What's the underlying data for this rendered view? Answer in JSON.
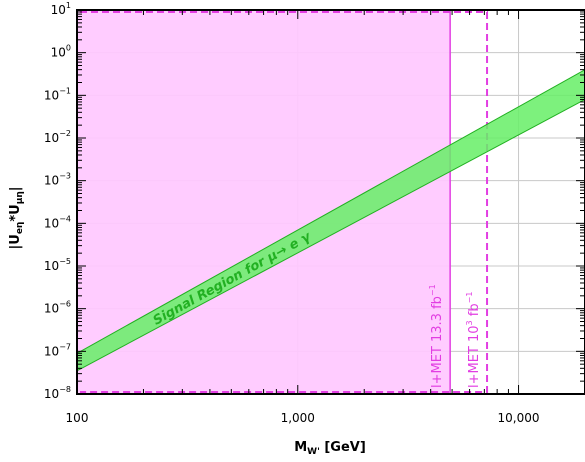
{
  "chart_data": {
    "type": "area",
    "title": "",
    "xlabel_main": "M",
    "xlabel_sub": "W'",
    "xlabel_unit": " [GeV]",
    "ylabel_parts": [
      "|U",
      "eη",
      "*U",
      "μη",
      "|"
    ],
    "xscale": "log",
    "yscale": "log",
    "xlim": [
      100,
      20000
    ],
    "ylim": [
      1e-08,
      10
    ],
    "grid": true,
    "xticks": [
      {
        "value": 100,
        "label": "100"
      },
      {
        "value": 1000,
        "label": "1,000"
      },
      {
        "value": 10000,
        "label": "10,000"
      }
    ],
    "yticks": [
      {
        "value": 10,
        "base": "10",
        "exp": "1"
      },
      {
        "value": 1,
        "base": "10",
        "exp": "0"
      },
      {
        "value": 0.1,
        "base": "10",
        "exp": "−1"
      },
      {
        "value": 0.01,
        "base": "10",
        "exp": "−2"
      },
      {
        "value": 0.001,
        "base": "10",
        "exp": "−3"
      },
      {
        "value": 0.0001,
        "base": "10",
        "exp": "−4"
      },
      {
        "value": 1e-05,
        "base": "10",
        "exp": "−5"
      },
      {
        "value": 1e-06,
        "base": "10",
        "exp": "−6"
      },
      {
        "value": 1e-07,
        "base": "10",
        "exp": "−7"
      },
      {
        "value": 1e-08,
        "base": "10",
        "exp": "−8"
      }
    ],
    "excluded_region": {
      "x_max": 4900,
      "color": "#ffc8ff",
      "border": "#e23ee2"
    },
    "limit_lines": [
      {
        "x": 4900,
        "style": "solid",
        "label": "l+MET 13.3 fb",
        "sup": "−1",
        "color": "#e23ee2"
      },
      {
        "x": 7200,
        "style": "dashed",
        "label": "l+MET 10",
        "label_exp": "3",
        "label_unit": " fb",
        "sup": "−1",
        "color": "#e23ee2"
      }
    ],
    "signal_band": {
      "color": "#66ee66",
      "edge_color": "#22b022",
      "label": "Signal Region for μ→ e γ",
      "label_at_x": 500,
      "lower": [
        [
          100,
          3.5e-08
        ],
        [
          20000,
          0.08
        ]
      ],
      "upper": [
        [
          100,
          9e-08
        ],
        [
          20000,
          0.4
        ]
      ]
    }
  }
}
